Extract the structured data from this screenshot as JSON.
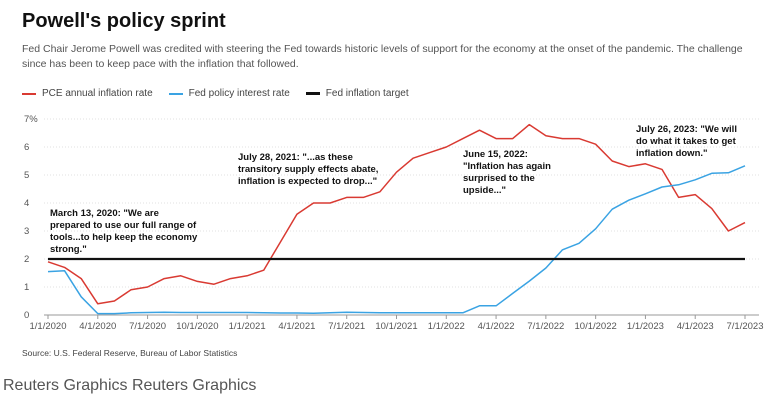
{
  "title": "Powell's policy sprint",
  "subtitle": "Fed Chair Jerome Powell was credited with steering the Fed towards historic levels of support for the economy at the onset of the pandemic. The challenge since has been to keep pace with the inflation that followed.",
  "legend": {
    "pce": "PCE annual inflation rate",
    "fed": "Fed policy interest rate",
    "target": "Fed inflation target"
  },
  "source": "Source: U.S. Federal Reserve, Bureau of Labor Statistics",
  "footer": "Reuters Graphics Reuters Graphics",
  "colors": {
    "pce": "#d93a32",
    "fed": "#3aa3e3",
    "target": "#111111",
    "grid": "#e2e2e2"
  },
  "chart_data": {
    "type": "line",
    "y_tick_labels": [
      "0",
      "1",
      "2",
      "3",
      "4",
      "5",
      "6",
      "7%"
    ],
    "ylim": [
      0,
      7
    ],
    "x_tick_labels": [
      "1/1/2020",
      "4/1/2020",
      "7/1/2020",
      "10/1/2020",
      "1/1/2021",
      "4/1/2021",
      "7/1/2021",
      "10/1/2021",
      "1/1/2022",
      "4/1/2022",
      "7/1/2022",
      "10/1/2022",
      "1/1/2023",
      "4/1/2023",
      "7/1/2023"
    ],
    "x_start": "2020-01",
    "x_end": "2023-07",
    "grid": true,
    "series": [
      {
        "name": "PCE annual inflation rate",
        "x": [
          "2020-01",
          "2020-02",
          "2020-03",
          "2020-04",
          "2020-05",
          "2020-06",
          "2020-07",
          "2020-08",
          "2020-09",
          "2020-10",
          "2020-11",
          "2020-12",
          "2021-01",
          "2021-02",
          "2021-03",
          "2021-04",
          "2021-05",
          "2021-06",
          "2021-07",
          "2021-08",
          "2021-09",
          "2021-10",
          "2021-11",
          "2021-12",
          "2022-01",
          "2022-02",
          "2022-03",
          "2022-04",
          "2022-05",
          "2022-06",
          "2022-07",
          "2022-08",
          "2022-09",
          "2022-10",
          "2022-11",
          "2022-12",
          "2023-01",
          "2023-02",
          "2023-03",
          "2023-04",
          "2023-05",
          "2023-06",
          "2023-07"
        ],
        "values": [
          1.9,
          1.7,
          1.3,
          0.4,
          0.5,
          0.9,
          1.0,
          1.3,
          1.4,
          1.2,
          1.1,
          1.3,
          1.4,
          1.6,
          2.6,
          3.6,
          4.0,
          4.0,
          4.2,
          4.2,
          4.4,
          5.1,
          5.6,
          5.8,
          6.0,
          6.3,
          6.6,
          6.3,
          6.3,
          6.8,
          6.4,
          6.3,
          6.3,
          6.1,
          5.5,
          5.3,
          5.4,
          5.2,
          4.2,
          4.3,
          3.8,
          3.0,
          3.3
        ]
      },
      {
        "name": "Fed policy interest rate",
        "x": [
          "2020-01",
          "2020-02",
          "2020-03",
          "2020-04",
          "2020-05",
          "2020-06",
          "2020-07",
          "2020-08",
          "2020-09",
          "2020-10",
          "2020-11",
          "2020-12",
          "2021-01",
          "2021-02",
          "2021-03",
          "2021-04",
          "2021-05",
          "2021-06",
          "2021-07",
          "2021-08",
          "2021-09",
          "2021-10",
          "2021-11",
          "2021-12",
          "2022-01",
          "2022-02",
          "2022-03",
          "2022-04",
          "2022-05",
          "2022-06",
          "2022-07",
          "2022-08",
          "2022-09",
          "2022-10",
          "2022-11",
          "2022-12",
          "2023-01",
          "2023-02",
          "2023-03",
          "2023-04",
          "2023-05",
          "2023-06",
          "2023-07"
        ],
        "values": [
          1.55,
          1.58,
          0.65,
          0.05,
          0.05,
          0.08,
          0.09,
          0.1,
          0.09,
          0.09,
          0.09,
          0.09,
          0.09,
          0.08,
          0.07,
          0.07,
          0.06,
          0.08,
          0.1,
          0.09,
          0.08,
          0.08,
          0.08,
          0.08,
          0.08,
          0.08,
          0.33,
          0.33,
          0.77,
          1.21,
          1.68,
          2.33,
          2.56,
          3.08,
          3.78,
          4.1,
          4.33,
          4.57,
          4.65,
          4.83,
          5.06,
          5.08,
          5.33
        ]
      },
      {
        "name": "Fed inflation target",
        "x": [
          "2020-01",
          "2023-07"
        ],
        "values": [
          2,
          2
        ]
      }
    ],
    "annotations": [
      {
        "date": "2020-03",
        "text": "March 13, 2020: \"We are prepared to use our full range of tools...to help keep the economy strong.\""
      },
      {
        "date": "2021-07",
        "text": "July 28, 2021: \"...as these transitory supply effects abate, inflation is expected to drop...\""
      },
      {
        "date": "2022-06",
        "text": "June 15, 2022: \"Inflation has again surprised to the upside...\""
      },
      {
        "date": "2023-07",
        "text": "July 26, 2023: \"We will do what it takes to get inflation down.\""
      }
    ]
  }
}
